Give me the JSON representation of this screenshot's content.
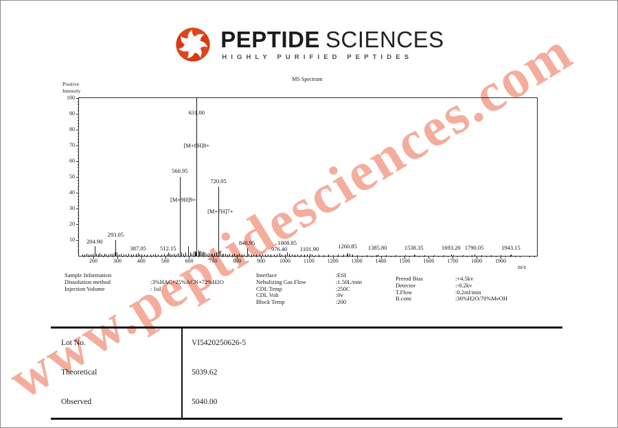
{
  "logo": {
    "brand_bold": "PEPTIDE",
    "brand_light": "SCIENCES",
    "tagline": "HIGHLY PURIFIED PEPTIDES",
    "icon": "spiral-pinwheel-icon",
    "icon_color": "#e04419"
  },
  "watermark": {
    "text": "www.peptidesciences.com",
    "color": "#f3a492"
  },
  "chart_data": {
    "type": "bar",
    "subtype": "mass-spectrum-stick-plot",
    "title": "MS Spectrum",
    "ylabel_line1": "Positive",
    "ylabel_line2": "Intensity",
    "xlabel": "m/z",
    "xlim": [
      140,
      2052
    ],
    "ylim": [
      0,
      100
    ],
    "grid": false,
    "x_major_ticks": [
      200,
      300,
      400,
      500,
      600,
      700,
      800,
      900,
      1000,
      1100,
      1200,
      1300,
      1400,
      1500,
      1600,
      1700,
      1800,
      1900
    ],
    "y_major_ticks": [
      10,
      20,
      30,
      40,
      50,
      60,
      70,
      80,
      90,
      100
    ],
    "peaks": [
      {
        "mz": 204.9,
        "intensity": 6
      },
      {
        "mz": 293.05,
        "intensity": 10
      },
      {
        "mz": 387.05,
        "intensity": 1.8
      },
      {
        "mz": 512.15,
        "intensity": 2
      },
      {
        "mz": 560.95,
        "intensity": 50
      },
      {
        "mz": 631.0,
        "intensity": 100
      },
      {
        "mz": 720.95,
        "intensity": 44
      },
      {
        "mz": 840.95,
        "intensity": 5
      },
      {
        "mz": 976.4,
        "intensity": 1.8
      },
      {
        "mz": 1008.85,
        "intensity": 2.2
      },
      {
        "mz": 1101.9,
        "intensity": 1.4
      },
      {
        "mz": 1260.85,
        "intensity": 1.8
      },
      {
        "mz": 1385.8,
        "intensity": 1
      },
      {
        "mz": 1538.35,
        "intensity": 1
      },
      {
        "mz": 1693.2,
        "intensity": 1
      },
      {
        "mz": 1790.05,
        "intensity": 1
      },
      {
        "mz": 1943.15,
        "intensity": 1
      }
    ],
    "noise": [
      {
        "mz": 155,
        "intensity": 1
      },
      {
        "mz": 163,
        "intensity": 0.8
      },
      {
        "mz": 171,
        "intensity": 1.2
      },
      {
        "mz": 179,
        "intensity": 0.8
      },
      {
        "mz": 189,
        "intensity": 1
      },
      {
        "mz": 197,
        "intensity": 1.5
      },
      {
        "mz": 211,
        "intensity": 1.5
      },
      {
        "mz": 219,
        "intensity": 1
      },
      {
        "mz": 227,
        "intensity": 1.8
      },
      {
        "mz": 236,
        "intensity": 1
      },
      {
        "mz": 245,
        "intensity": 1.2
      },
      {
        "mz": 253,
        "intensity": 0.8
      },
      {
        "mz": 263,
        "intensity": 1
      },
      {
        "mz": 271,
        "intensity": 1.5
      },
      {
        "mz": 281,
        "intensity": 1.2
      },
      {
        "mz": 289,
        "intensity": 2
      },
      {
        "mz": 299,
        "intensity": 2
      },
      {
        "mz": 307,
        "intensity": 1
      },
      {
        "mz": 316,
        "intensity": 1.2
      },
      {
        "mz": 325,
        "intensity": 0.8
      },
      {
        "mz": 335,
        "intensity": 1
      },
      {
        "mz": 346,
        "intensity": 1.2
      },
      {
        "mz": 357,
        "intensity": 0.8
      },
      {
        "mz": 367,
        "intensity": 1
      },
      {
        "mz": 377,
        "intensity": 1.2
      },
      {
        "mz": 393,
        "intensity": 1
      },
      {
        "mz": 401,
        "intensity": 0.8
      },
      {
        "mz": 413,
        "intensity": 1
      },
      {
        "mz": 425,
        "intensity": 0.8
      },
      {
        "mz": 437,
        "intensity": 1
      },
      {
        "mz": 449,
        "intensity": 0.8
      },
      {
        "mz": 459,
        "intensity": 1.2
      },
      {
        "mz": 471,
        "intensity": 0.8
      },
      {
        "mz": 483,
        "intensity": 1
      },
      {
        "mz": 495,
        "intensity": 1.2
      },
      {
        "mz": 506,
        "intensity": 1
      },
      {
        "mz": 519,
        "intensity": 1.4
      },
      {
        "mz": 527,
        "intensity": 1
      },
      {
        "mz": 535,
        "intensity": 1.2
      },
      {
        "mz": 545,
        "intensity": 1
      },
      {
        "mz": 553,
        "intensity": 1.8
      },
      {
        "mz": 568,
        "intensity": 2
      },
      {
        "mz": 577,
        "intensity": 1.5
      },
      {
        "mz": 585,
        "intensity": 2
      },
      {
        "mz": 595,
        "intensity": 6
      },
      {
        "mz": 603,
        "intensity": 2
      },
      {
        "mz": 611,
        "intensity": 1.5
      },
      {
        "mz": 618,
        "intensity": 2.5
      },
      {
        "mz": 624,
        "intensity": 3
      },
      {
        "mz": 628,
        "intensity": 2
      },
      {
        "mz": 638,
        "intensity": 3.5
      },
      {
        "mz": 642,
        "intensity": 2.5
      },
      {
        "mz": 647,
        "intensity": 3
      },
      {
        "mz": 653,
        "intensity": 2
      },
      {
        "mz": 659,
        "intensity": 2.5
      },
      {
        "mz": 665,
        "intensity": 2
      },
      {
        "mz": 673,
        "intensity": 1.5
      },
      {
        "mz": 681,
        "intensity": 1.8
      },
      {
        "mz": 689,
        "intensity": 1.2
      },
      {
        "mz": 697,
        "intensity": 1.5
      },
      {
        "mz": 705,
        "intensity": 1.8
      },
      {
        "mz": 713,
        "intensity": 2
      },
      {
        "mz": 729,
        "intensity": 2.5
      },
      {
        "mz": 735,
        "intensity": 1.5
      },
      {
        "mz": 743,
        "intensity": 1.2
      },
      {
        "mz": 751,
        "intensity": 1.5
      },
      {
        "mz": 759,
        "intensity": 1
      },
      {
        "mz": 767,
        "intensity": 1.2
      },
      {
        "mz": 779,
        "intensity": 0.8
      },
      {
        "mz": 789,
        "intensity": 1.5
      },
      {
        "mz": 799,
        "intensity": 1
      },
      {
        "mz": 809,
        "intensity": 1.2
      },
      {
        "mz": 819,
        "intensity": 0.8
      },
      {
        "mz": 829,
        "intensity": 1
      },
      {
        "mz": 849,
        "intensity": 1.5
      },
      {
        "mz": 859,
        "intensity": 1
      },
      {
        "mz": 869,
        "intensity": 0.8
      },
      {
        "mz": 881,
        "intensity": 1
      },
      {
        "mz": 893,
        "intensity": 0.8
      },
      {
        "mz": 905,
        "intensity": 1
      },
      {
        "mz": 917,
        "intensity": 0.8
      },
      {
        "mz": 929,
        "intensity": 1
      },
      {
        "mz": 941,
        "intensity": 0.7
      },
      {
        "mz": 953,
        "intensity": 0.8
      },
      {
        "mz": 965,
        "intensity": 1
      },
      {
        "mz": 987,
        "intensity": 0.8
      },
      {
        "mz": 999,
        "intensity": 1
      },
      {
        "mz": 1017,
        "intensity": 1.2
      },
      {
        "mz": 1029,
        "intensity": 0.8
      },
      {
        "mz": 1041,
        "intensity": 1
      },
      {
        "mz": 1053,
        "intensity": 0.7
      },
      {
        "mz": 1065,
        "intensity": 0.8
      },
      {
        "mz": 1081,
        "intensity": 0.7
      },
      {
        "mz": 1093,
        "intensity": 0.8
      },
      {
        "mz": 1111,
        "intensity": 0.7
      },
      {
        "mz": 1127,
        "intensity": 0.6
      },
      {
        "mz": 1141,
        "intensity": 0.7
      },
      {
        "mz": 1161,
        "intensity": 0.6
      },
      {
        "mz": 1181,
        "intensity": 0.7
      },
      {
        "mz": 1201,
        "intensity": 0.6
      },
      {
        "mz": 1221,
        "intensity": 0.7
      },
      {
        "mz": 1245,
        "intensity": 0.8
      },
      {
        "mz": 1257,
        "intensity": 1
      },
      {
        "mz": 1269,
        "intensity": 1.2
      },
      {
        "mz": 1281,
        "intensity": 0.8
      },
      {
        "mz": 1301,
        "intensity": 0.6
      },
      {
        "mz": 1341,
        "intensity": 0.5
      },
      {
        "mz": 1381,
        "intensity": 0.6
      },
      {
        "mz": 1421,
        "intensity": 0.5
      },
      {
        "mz": 1461,
        "intensity": 0.5
      },
      {
        "mz": 1501,
        "intensity": 0.5
      },
      {
        "mz": 1541,
        "intensity": 0.6
      },
      {
        "mz": 1581,
        "intensity": 0.5
      },
      {
        "mz": 1621,
        "intensity": 0.5
      },
      {
        "mz": 1661,
        "intensity": 0.5
      },
      {
        "mz": 1701,
        "intensity": 0.6
      },
      {
        "mz": 1741,
        "intensity": 0.5
      },
      {
        "mz": 1781,
        "intensity": 0.5
      },
      {
        "mz": 1821,
        "intensity": 0.5
      },
      {
        "mz": 1861,
        "intensity": 0.5
      },
      {
        "mz": 1901,
        "intensity": 0.5
      },
      {
        "mz": 1941,
        "intensity": 0.6
      }
    ],
    "annotations": [
      {
        "text": "631.00",
        "mz": 631,
        "pct": 89
      },
      {
        "text": "[M+8H]8+",
        "mz": 631,
        "pct": 68
      },
      {
        "text": "560.95",
        "mz": 561,
        "pct": 52
      },
      {
        "text": "[M+9H]9+",
        "mz": 575,
        "pct": 33.5
      },
      {
        "text": "720.95",
        "mz": 722,
        "pct": 45.5
      },
      {
        "text": "[M+7H]7+",
        "mz": 730,
        "pct": 26.5
      },
      {
        "text": "204.90",
        "mz": 205,
        "pct": 7
      },
      {
        "text": "293.05",
        "mz": 293,
        "pct": 11.5
      },
      {
        "text": "387.05",
        "mz": 387,
        "pct": 3
      },
      {
        "text": "512.15",
        "mz": 512,
        "pct": 3
      },
      {
        "text": "840.95",
        "mz": 841,
        "pct": 6.2
      },
      {
        "text": "976.40",
        "mz": 976,
        "pct": 2.2
      },
      {
        "text": "1008.85",
        "mz": 1009,
        "pct": 6.5
      },
      {
        "text": "1101.90",
        "mz": 1102,
        "pct": 2.2
      },
      {
        "text": "1260.85",
        "mz": 1261,
        "pct": 4.2
      },
      {
        "text": "1385.80",
        "mz": 1386,
        "pct": 3.2
      },
      {
        "text": "1538.35",
        "mz": 1538,
        "pct": 3.2
      },
      {
        "text": "1693.20",
        "mz": 1693,
        "pct": 3.2
      },
      {
        "text": "1790.05",
        "mz": 1790,
        "pct": 3.2
      },
      {
        "text": "1943.15",
        "mz": 1943,
        "pct": 3.2
      }
    ]
  },
  "sample_info": {
    "col1": {
      "rows": [
        {
          "label": "Sample Information",
          "value": ""
        },
        {
          "label": "Dissolution method",
          "value": ":3%HAC+25%ACN+72%H2O"
        },
        {
          "label": "Injection Volume",
          "value": ": 1ul"
        }
      ]
    },
    "col2": {
      "rows": [
        {
          "label": "Interface",
          "value": ":ESI"
        },
        {
          "label": "Nebulizing Gas Flow",
          "value": ":1.50L/min"
        },
        {
          "label": "CDL Temp",
          "value": ":250C"
        },
        {
          "label": "CDL Volt",
          "value": ":0v"
        },
        {
          "label": "Block Temp",
          "value": ":200"
        }
      ]
    },
    "col3": {
      "rows": [
        {
          "label": "Prerod Bias",
          "value": ":+4.5kv"
        },
        {
          "label": "Detector",
          "value": ":-0.2kv"
        },
        {
          "label": "T.Flow",
          "value": ":0.2ml/min"
        },
        {
          "label": "B.conc",
          "value": ":30%H2O/70%MeOH"
        }
      ]
    }
  },
  "results_table": {
    "rows": [
      {
        "label": "Lot No.",
        "value": "VI5420250626-5"
      },
      {
        "label": "Theoretical",
        "value": "5039.62"
      },
      {
        "label": "Observed",
        "value": "5040.00"
      }
    ]
  }
}
